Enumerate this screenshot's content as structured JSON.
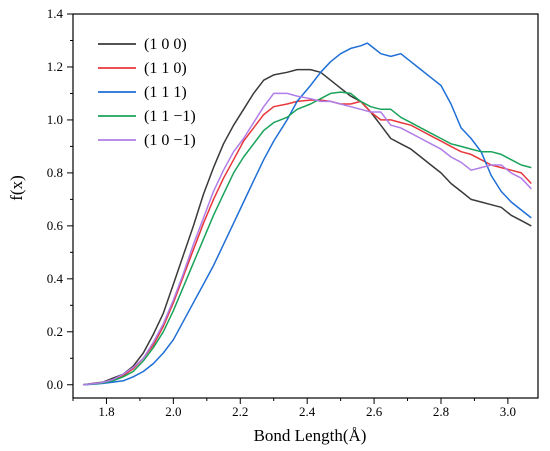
{
  "chart_data": {
    "type": "line",
    "xlabel": "Bond Length(Å)",
    "ylabel": "f(x)",
    "xlim": [
      1.7,
      3.09
    ],
    "ylim": [
      -0.05,
      1.4
    ],
    "xticks": [
      1.8,
      2.0,
      2.2,
      2.4,
      2.6,
      2.8,
      3.0
    ],
    "yticks": [
      0.0,
      0.2,
      0.4,
      0.6,
      0.8,
      1.0,
      1.2,
      1.4
    ],
    "xtick_labels": [
      "1.8",
      "2.0",
      "2.2",
      "2.4",
      "2.6",
      "2.8",
      "3.0"
    ],
    "ytick_labels": [
      "0.0",
      "0.2",
      "0.4",
      "0.6",
      "0.8",
      "1.0",
      "1.2",
      "1.4"
    ],
    "legend_position": "top-left",
    "grid": false,
    "series": [
      {
        "name": "(1 0 0)",
        "color": "#3a3a3a",
        "points": [
          [
            1.73,
            0.0
          ],
          [
            1.76,
            0.005
          ],
          [
            1.79,
            0.01
          ],
          [
            1.82,
            0.025
          ],
          [
            1.85,
            0.04
          ],
          [
            1.88,
            0.07
          ],
          [
            1.91,
            0.12
          ],
          [
            1.94,
            0.19
          ],
          [
            1.97,
            0.27
          ],
          [
            2.0,
            0.38
          ],
          [
            2.03,
            0.49
          ],
          [
            2.06,
            0.6
          ],
          [
            2.09,
            0.72
          ],
          [
            2.12,
            0.82
          ],
          [
            2.15,
            0.91
          ],
          [
            2.18,
            0.98
          ],
          [
            2.21,
            1.04
          ],
          [
            2.24,
            1.1
          ],
          [
            2.27,
            1.15
          ],
          [
            2.3,
            1.17
          ],
          [
            2.34,
            1.18
          ],
          [
            2.37,
            1.19
          ],
          [
            2.41,
            1.19
          ],
          [
            2.44,
            1.18
          ],
          [
            2.47,
            1.15
          ],
          [
            2.5,
            1.12
          ],
          [
            2.53,
            1.09
          ],
          [
            2.56,
            1.07
          ],
          [
            2.59,
            1.03
          ],
          [
            2.62,
            0.98
          ],
          [
            2.65,
            0.93
          ],
          [
            2.68,
            0.91
          ],
          [
            2.71,
            0.89
          ],
          [
            2.74,
            0.86
          ],
          [
            2.77,
            0.83
          ],
          [
            2.8,
            0.8
          ],
          [
            2.83,
            0.76
          ],
          [
            2.86,
            0.73
          ],
          [
            2.89,
            0.7
          ],
          [
            2.92,
            0.69
          ],
          [
            2.95,
            0.68
          ],
          [
            2.98,
            0.67
          ],
          [
            3.01,
            0.64
          ],
          [
            3.04,
            0.62
          ],
          [
            3.07,
            0.6
          ]
        ]
      },
      {
        "name": "(1 1 0)",
        "color": "#e8373b",
        "points": [
          [
            1.73,
            0.0
          ],
          [
            1.76,
            0.004
          ],
          [
            1.79,
            0.008
          ],
          [
            1.82,
            0.02
          ],
          [
            1.85,
            0.035
          ],
          [
            1.88,
            0.06
          ],
          [
            1.91,
            0.1
          ],
          [
            1.94,
            0.15
          ],
          [
            1.97,
            0.22
          ],
          [
            2.0,
            0.31
          ],
          [
            2.03,
            0.41
          ],
          [
            2.06,
            0.51
          ],
          [
            2.09,
            0.61
          ],
          [
            2.12,
            0.7
          ],
          [
            2.15,
            0.78
          ],
          [
            2.18,
            0.85
          ],
          [
            2.21,
            0.92
          ],
          [
            2.24,
            0.97
          ],
          [
            2.27,
            1.02
          ],
          [
            2.3,
            1.05
          ],
          [
            2.34,
            1.06
          ],
          [
            2.37,
            1.07
          ],
          [
            2.41,
            1.075
          ],
          [
            2.44,
            1.075
          ],
          [
            2.47,
            1.07
          ],
          [
            2.5,
            1.06
          ],
          [
            2.53,
            1.06
          ],
          [
            2.56,
            1.07
          ],
          [
            2.59,
            1.03
          ],
          [
            2.62,
            1.0
          ],
          [
            2.65,
            1.0
          ],
          [
            2.68,
            0.99
          ],
          [
            2.71,
            0.98
          ],
          [
            2.74,
            0.96
          ],
          [
            2.77,
            0.94
          ],
          [
            2.8,
            0.92
          ],
          [
            2.83,
            0.9
          ],
          [
            2.86,
            0.88
          ],
          [
            2.89,
            0.87
          ],
          [
            2.92,
            0.85
          ],
          [
            2.95,
            0.83
          ],
          [
            2.98,
            0.82
          ],
          [
            3.01,
            0.81
          ],
          [
            3.04,
            0.8
          ],
          [
            3.07,
            0.76
          ]
        ]
      },
      {
        "name": "(1 1 1)",
        "color": "#1f6fd6",
        "points": [
          [
            1.73,
            0.0
          ],
          [
            1.76,
            0.002
          ],
          [
            1.79,
            0.005
          ],
          [
            1.82,
            0.01
          ],
          [
            1.85,
            0.015
          ],
          [
            1.88,
            0.03
          ],
          [
            1.91,
            0.05
          ],
          [
            1.94,
            0.08
          ],
          [
            1.97,
            0.12
          ],
          [
            2.0,
            0.17
          ],
          [
            2.03,
            0.24
          ],
          [
            2.06,
            0.31
          ],
          [
            2.09,
            0.38
          ],
          [
            2.12,
            0.45
          ],
          [
            2.15,
            0.53
          ],
          [
            2.18,
            0.61
          ],
          [
            2.21,
            0.69
          ],
          [
            2.24,
            0.77
          ],
          [
            2.27,
            0.85
          ],
          [
            2.3,
            0.92
          ],
          [
            2.34,
            1.0
          ],
          [
            2.37,
            1.07
          ],
          [
            2.41,
            1.13
          ],
          [
            2.44,
            1.18
          ],
          [
            2.47,
            1.22
          ],
          [
            2.5,
            1.25
          ],
          [
            2.53,
            1.27
          ],
          [
            2.56,
            1.28
          ],
          [
            2.58,
            1.29
          ],
          [
            2.6,
            1.27
          ],
          [
            2.62,
            1.25
          ],
          [
            2.65,
            1.24
          ],
          [
            2.68,
            1.25
          ],
          [
            2.71,
            1.22
          ],
          [
            2.74,
            1.19
          ],
          [
            2.77,
            1.16
          ],
          [
            2.8,
            1.13
          ],
          [
            2.83,
            1.06
          ],
          [
            2.86,
            0.97
          ],
          [
            2.89,
            0.93
          ],
          [
            2.92,
            0.88
          ],
          [
            2.95,
            0.79
          ],
          [
            2.98,
            0.73
          ],
          [
            3.01,
            0.69
          ],
          [
            3.04,
            0.66
          ],
          [
            3.07,
            0.63
          ]
        ]
      },
      {
        "name": "(1 1 −1)",
        "color": "#19a35a",
        "points": [
          [
            1.73,
            0.0
          ],
          [
            1.76,
            0.003
          ],
          [
            1.79,
            0.007
          ],
          [
            1.82,
            0.015
          ],
          [
            1.85,
            0.03
          ],
          [
            1.88,
            0.05
          ],
          [
            1.91,
            0.09
          ],
          [
            1.94,
            0.14
          ],
          [
            1.97,
            0.2
          ],
          [
            2.0,
            0.28
          ],
          [
            2.03,
            0.37
          ],
          [
            2.06,
            0.46
          ],
          [
            2.09,
            0.55
          ],
          [
            2.12,
            0.64
          ],
          [
            2.15,
            0.72
          ],
          [
            2.18,
            0.8
          ],
          [
            2.21,
            0.86
          ],
          [
            2.24,
            0.91
          ],
          [
            2.27,
            0.96
          ],
          [
            2.3,
            0.99
          ],
          [
            2.34,
            1.01
          ],
          [
            2.37,
            1.04
          ],
          [
            2.41,
            1.06
          ],
          [
            2.44,
            1.08
          ],
          [
            2.47,
            1.1
          ],
          [
            2.5,
            1.105
          ],
          [
            2.53,
            1.1
          ],
          [
            2.56,
            1.07
          ],
          [
            2.59,
            1.05
          ],
          [
            2.62,
            1.04
          ],
          [
            2.65,
            1.04
          ],
          [
            2.68,
            1.01
          ],
          [
            2.71,
            0.99
          ],
          [
            2.74,
            0.97
          ],
          [
            2.77,
            0.95
          ],
          [
            2.8,
            0.93
          ],
          [
            2.83,
            0.91
          ],
          [
            2.86,
            0.9
          ],
          [
            2.89,
            0.89
          ],
          [
            2.92,
            0.88
          ],
          [
            2.95,
            0.88
          ],
          [
            2.98,
            0.87
          ],
          [
            3.01,
            0.85
          ],
          [
            3.04,
            0.83
          ],
          [
            3.07,
            0.82
          ]
        ]
      },
      {
        "name": "(1 0 −1)",
        "color": "#b07de8",
        "points": [
          [
            1.73,
            0.0
          ],
          [
            1.76,
            0.004
          ],
          [
            1.79,
            0.009
          ],
          [
            1.82,
            0.02
          ],
          [
            1.85,
            0.04
          ],
          [
            1.88,
            0.065
          ],
          [
            1.91,
            0.1
          ],
          [
            1.94,
            0.16
          ],
          [
            1.97,
            0.23
          ],
          [
            2.0,
            0.32
          ],
          [
            2.03,
            0.42
          ],
          [
            2.06,
            0.53
          ],
          [
            2.09,
            0.63
          ],
          [
            2.12,
            0.73
          ],
          [
            2.15,
            0.81
          ],
          [
            2.18,
            0.88
          ],
          [
            2.21,
            0.93
          ],
          [
            2.24,
            0.99
          ],
          [
            2.27,
            1.05
          ],
          [
            2.3,
            1.1
          ],
          [
            2.34,
            1.1
          ],
          [
            2.37,
            1.09
          ],
          [
            2.41,
            1.08
          ],
          [
            2.44,
            1.07
          ],
          [
            2.47,
            1.07
          ],
          [
            2.5,
            1.06
          ],
          [
            2.53,
            1.05
          ],
          [
            2.56,
            1.04
          ],
          [
            2.59,
            1.03
          ],
          [
            2.62,
            1.03
          ],
          [
            2.65,
            0.98
          ],
          [
            2.68,
            0.97
          ],
          [
            2.71,
            0.95
          ],
          [
            2.74,
            0.93
          ],
          [
            2.77,
            0.91
          ],
          [
            2.8,
            0.89
          ],
          [
            2.83,
            0.86
          ],
          [
            2.86,
            0.84
          ],
          [
            2.89,
            0.81
          ],
          [
            2.92,
            0.82
          ],
          [
            2.95,
            0.83
          ],
          [
            2.98,
            0.83
          ],
          [
            3.01,
            0.8
          ],
          [
            3.04,
            0.78
          ],
          [
            3.07,
            0.74
          ]
        ]
      }
    ]
  }
}
